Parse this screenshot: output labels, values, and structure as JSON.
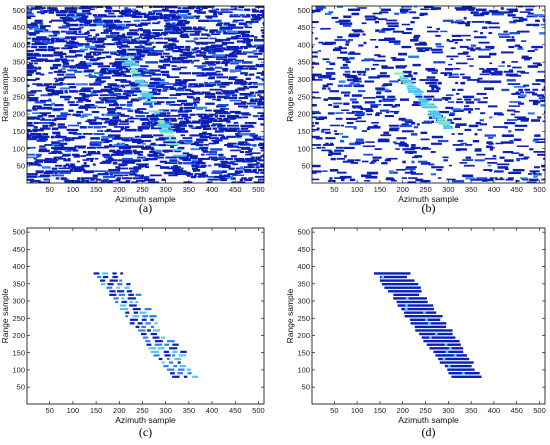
{
  "chart_data": [
    {
      "panel": "(a)",
      "type": "heatmap",
      "xlabel": "Azimuth sample",
      "ylabel": "Range sample",
      "xlim": [
        1,
        512
      ],
      "ylim": [
        1,
        512
      ],
      "xticks": [
        50,
        100,
        150,
        200,
        250,
        300,
        350,
        400,
        450,
        500
      ],
      "yticks": [
        50,
        100,
        150,
        200,
        250,
        300,
        350,
        400,
        450,
        500
      ],
      "pattern": {
        "density": 0.85,
        "track_strength": 0.35,
        "track": [
          [
            210,
            380
          ],
          [
            330,
            80
          ]
        ],
        "ymin": 1,
        "ymax": 512
      },
      "colors": [
        "#0a1fb5",
        "#1b4ce0",
        "#2f7ef0",
        "#4fc7f2",
        "#7be8c6"
      ]
    },
    {
      "panel": "(b)",
      "type": "heatmap",
      "xlabel": "Azimuth sample",
      "ylabel": "Range sample",
      "xlim": [
        1,
        512
      ],
      "ylim": [
        1,
        512
      ],
      "xticks": [
        50,
        100,
        150,
        200,
        250,
        300,
        350,
        400,
        450,
        500
      ],
      "yticks": [
        50,
        100,
        150,
        200,
        250,
        300,
        350,
        400,
        450,
        500
      ],
      "pattern": {
        "density": 0.42,
        "track_strength": 0.45,
        "track": [
          [
            190,
            320
          ],
          [
            300,
            160
          ]
        ],
        "ymin": 1,
        "ymax": 512
      },
      "colors": [
        "#0a1fb5",
        "#1b4ce0",
        "#2f7ef0",
        "#4fc7f2",
        "#7be8c6"
      ]
    },
    {
      "panel": "(c)",
      "type": "heatmap",
      "xlabel": "Azimuth sample",
      "ylabel": "Range sample",
      "xlim": [
        1,
        512
      ],
      "ylim": [
        1,
        512
      ],
      "xticks": [
        50,
        100,
        150,
        200,
        250,
        300,
        350,
        400,
        450,
        500
      ],
      "yticks": [
        50,
        100,
        150,
        200,
        250,
        300,
        350,
        400,
        450,
        500
      ],
      "pattern": {
        "density": 0.0,
        "track_strength": 1.0,
        "track": [
          [
            165,
            380
          ],
          [
            330,
            80
          ]
        ],
        "ymin": 80,
        "ymax": 400,
        "segmented": true
      },
      "colors": [
        "#0a1fb5",
        "#1b4ce0",
        "#2f7ef0",
        "#4fc7f2",
        "#7be8c6"
      ]
    },
    {
      "panel": "(d)",
      "type": "heatmap",
      "xlabel": "Azimuth sample",
      "ylabel": "Range sample",
      "xlim": [
        1,
        512
      ],
      "ylim": [
        1,
        512
      ],
      "xticks": [
        50,
        100,
        150,
        200,
        250,
        300,
        350,
        400,
        450,
        500
      ],
      "yticks": [
        50,
        100,
        150,
        200,
        250,
        300,
        350,
        400,
        450,
        500
      ],
      "pattern": {
        "density": 0.0,
        "track_strength": 1.0,
        "track": [
          [
            165,
            380
          ],
          [
            330,
            80
          ]
        ],
        "ymin": 80,
        "ymax": 400,
        "segmented": false
      },
      "colors": [
        "#0a1fb5",
        "#1b4ce0",
        "#2f7ef0",
        "#4fc7f2",
        "#7be8c6"
      ]
    }
  ]
}
